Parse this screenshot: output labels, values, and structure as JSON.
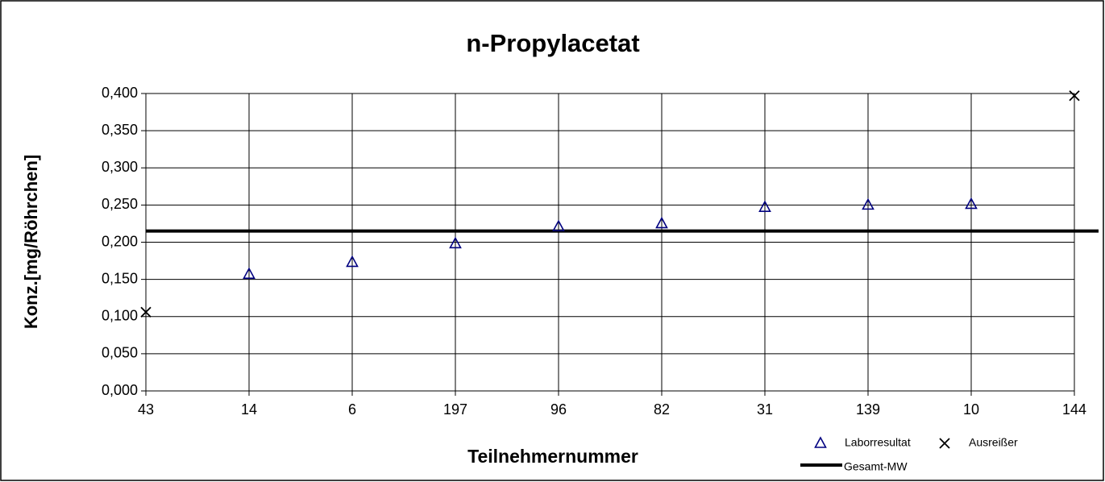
{
  "chart_data": {
    "type": "scatter",
    "title": "n-Propylacetat",
    "x_label": "Teilnehmernummer",
    "y_label": "Konz.[mg/Röhrchen]",
    "categories": [
      "43",
      "14",
      "6",
      "197",
      "96",
      "82",
      "31",
      "139",
      "10",
      "144"
    ],
    "series": [
      {
        "name": "Laborresultat",
        "color": "#000080",
        "marker": "triangle",
        "values": [
          null,
          0.157,
          0.173,
          0.198,
          0.221,
          0.225,
          0.247,
          0.25,
          0.251,
          null
        ]
      },
      {
        "name": "Ausreißer",
        "color": "#000000",
        "marker": "x",
        "values": [
          0.106,
          null,
          null,
          null,
          null,
          null,
          null,
          null,
          null,
          0.397
        ]
      }
    ],
    "reference_line": {
      "name": "Gesamt-MW",
      "value": 0.215,
      "color": "#000000"
    },
    "ylim": [
      0,
      0.4
    ],
    "yticks": [
      {
        "value": 0,
        "label": "0,000"
      },
      {
        "value": 0.05,
        "label": "0,050"
      },
      {
        "value": 0.1,
        "label": "0,100"
      },
      {
        "value": 0.15,
        "label": "0,150"
      },
      {
        "value": 0.2,
        "label": "0,200"
      },
      {
        "value": 0.25,
        "label": "0,250"
      },
      {
        "value": 0.3,
        "label": "0,300"
      },
      {
        "value": 0.35,
        "label": "0,350"
      },
      {
        "value": 0.4,
        "label": "0,400"
      }
    ],
    "grid": true,
    "legend": "bottom-right"
  }
}
